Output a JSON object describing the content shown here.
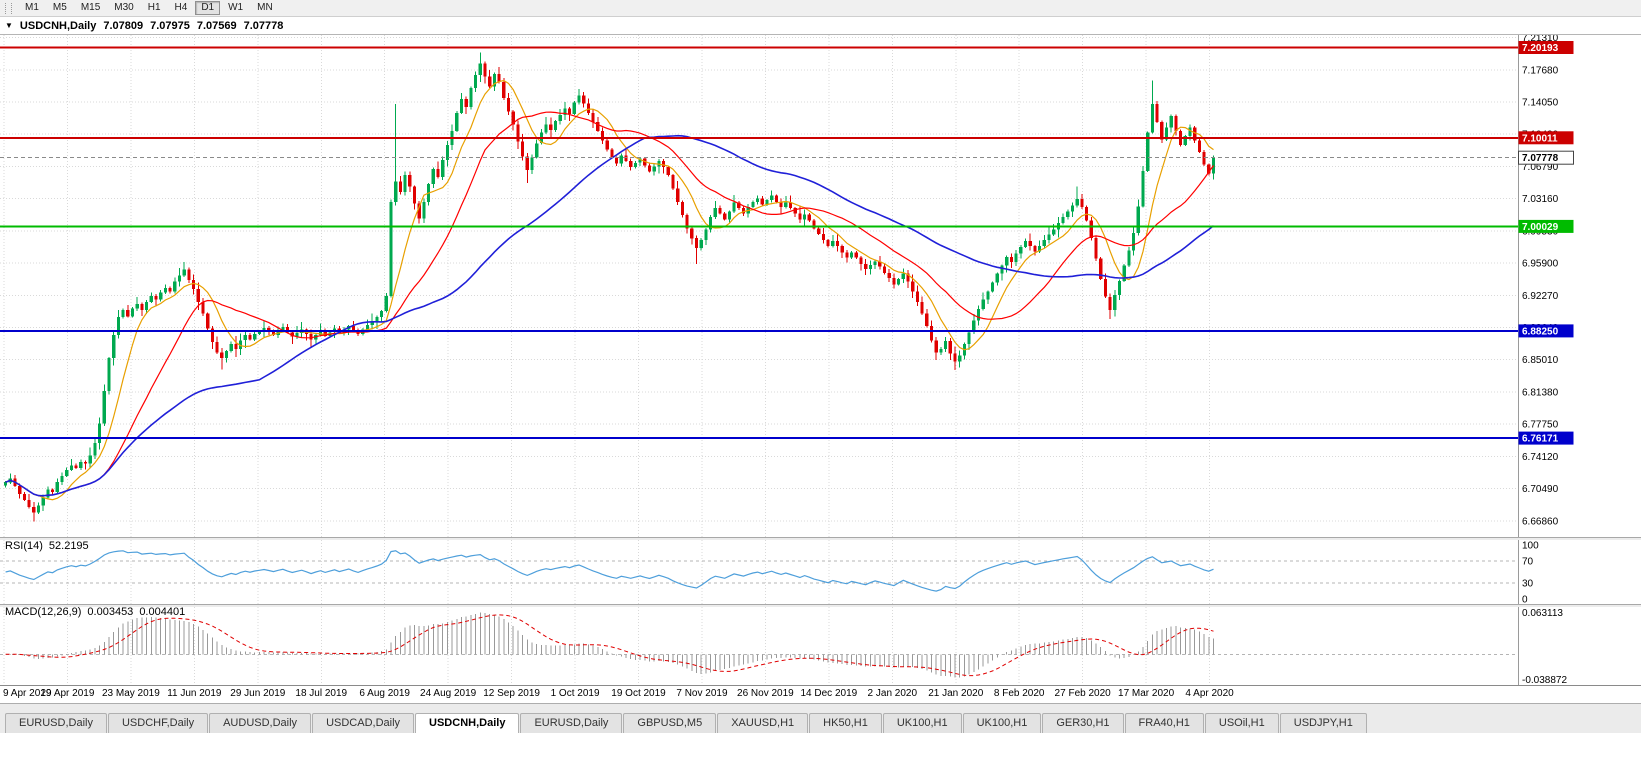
{
  "toolbar": {
    "timeframes": [
      "M1",
      "M5",
      "M15",
      "M30",
      "H1",
      "H4",
      "D1",
      "W1",
      "MN"
    ],
    "active": "D1"
  },
  "chart_header": {
    "title": "USDCNH,Daily",
    "open": "7.07809",
    "high": "7.07975",
    "low": "7.07569",
    "close": "7.07778"
  },
  "indicators": {
    "rsi": "RSI(14)",
    "rsi_value": "52.2195",
    "macd": "MACD(12,26,9)",
    "macd_value1": "0.003453",
    "macd_value2": "0.004401"
  },
  "tabs": {
    "items": [
      "EURUSD,Daily",
      "USDCHF,Daily",
      "AUDUSD,Daily",
      "USDCAD,Daily",
      "USDCNH,Daily",
      "EURUSD,Daily",
      "GBPUSD,M5",
      "XAUUSD,H1",
      "HK50,H1",
      "UK100,H1",
      "UK100,H1",
      "GER30,H1",
      "FRA40,H1",
      "USOil,H1",
      "USDJPY,H1"
    ],
    "active_index": 4
  },
  "chart_data": {
    "type": "candlestick",
    "symbol": "USDCNH",
    "timeframe": "Daily",
    "x_labels": [
      "9 Apr 2019",
      "29 Apr 2019",
      "23 May 2019",
      "11 Jun 2019",
      "29 Jun 2019",
      "18 Jul 2019",
      "6 Aug 2019",
      "24 Aug 2019",
      "12 Sep 2019",
      "1 Oct 2019",
      "19 Oct 2019",
      "7 Nov 2019",
      "26 Nov 2019",
      "14 Dec 2019",
      "2 Jan 2020",
      "21 Jan 2020",
      "8 Feb 2020",
      "27 Feb 2020",
      "17 Mar 2020",
      "4 Apr 2020"
    ],
    "x_label_step": 13.5,
    "y_ticks": [
      "7.21310",
      "7.17680",
      "7.14050",
      "7.10420",
      "7.06790",
      "7.03160",
      "6.99530",
      "6.95900",
      "6.92270",
      "6.88640",
      "6.85010",
      "6.81380",
      "6.77750",
      "6.74120",
      "6.70490",
      "6.66860"
    ],
    "y_max": 7.216,
    "y_min": 6.6503,
    "first_open": 6.708,
    "closes": [
      6.712,
      6.7165,
      6.708,
      6.699,
      6.692,
      6.684,
      6.678,
      6.686,
      6.695,
      6.704,
      6.701,
      6.712,
      6.719,
      6.726,
      6.731,
      6.728,
      6.735,
      6.733,
      6.742,
      6.756,
      6.778,
      6.815,
      6.852,
      6.878,
      6.898,
      6.906,
      6.899,
      6.908,
      6.913,
      6.906,
      6.915,
      6.922,
      6.918,
      6.926,
      6.931,
      6.927,
      6.938,
      6.945,
      6.952,
      6.94,
      6.93,
      6.915,
      6.902,
      6.885,
      6.87,
      6.858,
      6.852,
      6.86,
      6.868,
      6.862,
      6.872,
      6.878,
      6.873,
      6.879,
      6.882,
      6.886,
      6.882,
      6.878,
      6.883,
      6.887,
      6.881,
      6.876,
      6.88,
      6.884,
      6.879,
      6.873,
      6.878,
      6.882,
      6.877,
      6.881,
      6.885,
      6.88,
      6.884,
      6.888,
      6.883,
      6.879,
      6.884,
      6.889,
      6.893,
      6.898,
      6.905,
      6.922,
      7.028,
      7.051,
      7.039,
      7.058,
      7.045,
      7.026,
      7.009,
      7.028,
      7.048,
      7.065,
      7.056,
      7.075,
      7.092,
      7.108,
      7.128,
      7.144,
      7.135,
      7.156,
      7.171,
      7.184,
      7.169,
      7.158,
      7.172,
      7.163,
      7.145,
      7.13,
      7.115,
      7.096,
      7.079,
      7.064,
      7.078,
      7.094,
      7.106,
      7.115,
      7.109,
      7.119,
      7.126,
      7.133,
      7.127,
      7.14,
      7.148,
      7.139,
      7.128,
      7.118,
      7.108,
      7.097,
      7.087,
      7.078,
      7.071,
      7.08,
      7.074,
      7.067,
      7.072,
      7.077,
      7.069,
      7.062,
      7.068,
      7.074,
      7.067,
      7.058,
      7.043,
      7.028,
      7.013,
      6.998,
      6.987,
      6.976,
      6.985,
      6.997,
      7.011,
      7.021,
      7.015,
      7.008,
      7.017,
      7.027,
      7.021,
      7.015,
      7.022,
      7.028,
      7.032,
      7.025,
      7.03,
      7.035,
      7.028,
      7.022,
      7.027,
      7.021,
      7.015,
      7.008,
      7.014,
      7.007,
      6.998,
      6.992,
      6.985,
      6.978,
      6.984,
      6.978,
      6.971,
      6.965,
      6.971,
      6.965,
      6.958,
      6.952,
      6.957,
      6.961,
      6.955,
      6.948,
      6.942,
      6.935,
      6.941,
      6.947,
      6.938,
      6.927,
      6.915,
      6.902,
      6.888,
      6.872,
      6.858,
      6.862,
      6.871,
      6.857,
      6.848,
      6.855,
      6.868,
      6.881,
      6.894,
      6.907,
      6.918,
      6.927,
      6.937,
      6.947,
      6.956,
      6.966,
      6.96,
      6.97,
      6.977,
      6.984,
      6.978,
      6.972,
      6.978,
      6.985,
      6.991,
      6.997,
      7.004,
      7.011,
      7.017,
      7.024,
      7.031,
      7.022,
      7.007,
      6.987,
      6.964,
      6.941,
      6.921,
      6.906,
      6.923,
      6.939,
      6.956,
      6.973,
      6.993,
      7.023,
      7.063,
      7.106,
      7.138,
      7.118,
      7.098,
      7.112,
      7.125,
      7.108,
      7.092,
      7.102,
      7.112,
      7.097,
      7.084,
      7.07,
      7.06,
      7.0778
    ],
    "extremes": [
      {
        "i": 6,
        "low": 6.668
      },
      {
        "i": 38,
        "high": 6.96
      },
      {
        "i": 46,
        "low": 6.839
      },
      {
        "i": 83,
        "high": 7.1385
      },
      {
        "i": 101,
        "high": 7.1965
      },
      {
        "i": 111,
        "low": 7.049
      },
      {
        "i": 122,
        "high": 7.155
      },
      {
        "i": 147,
        "low": 6.958
      },
      {
        "i": 202,
        "low": 6.8386
      },
      {
        "i": 228,
        "high": 7.045
      },
      {
        "i": 235,
        "low": 6.896
      },
      {
        "i": 244,
        "high": 7.1645
      }
    ],
    "hlines": [
      {
        "price": 7.20193,
        "label": "7.20193",
        "color": "#CC0000"
      },
      {
        "price": 7.10011,
        "label": "7.10011",
        "color": "#CC0000"
      },
      {
        "price": 7.00029,
        "label": "7.00029",
        "color": "#00BB00"
      },
      {
        "price": 6.8825,
        "label": "6.88250",
        "color": "#0000CC"
      },
      {
        "price": 6.76171,
        "label": "6.76171",
        "color": "#0000CC"
      }
    ],
    "current_price": {
      "value": 7.07778,
      "label": "7.07778"
    },
    "moving_averages": [
      {
        "period": 8,
        "color": "#E8A000"
      },
      {
        "period": 21,
        "color": "#FF0000"
      },
      {
        "period": 55,
        "color": "#2020D8"
      }
    ],
    "colors": {
      "up": "#00A94F",
      "down": "#E00000",
      "grid": "#D9D9D9",
      "rsi": "#4E9FDB",
      "macd_hist": "#999999",
      "macd_signal": "#E00000"
    },
    "rsi": {
      "period": 14,
      "current": "52.2195",
      "levels": [
        70,
        30
      ],
      "axis_labels": [
        "100",
        "70",
        "30",
        "0"
      ],
      "axis_values": [
        100,
        70,
        30,
        0
      ]
    },
    "macd": {
      "fast": 12,
      "slow": 26,
      "signal_period": 9,
      "axis_max": 0.063113,
      "axis_min": -0.038872,
      "axis_labels": [
        "0.063113",
        "-0.038872"
      ]
    }
  }
}
